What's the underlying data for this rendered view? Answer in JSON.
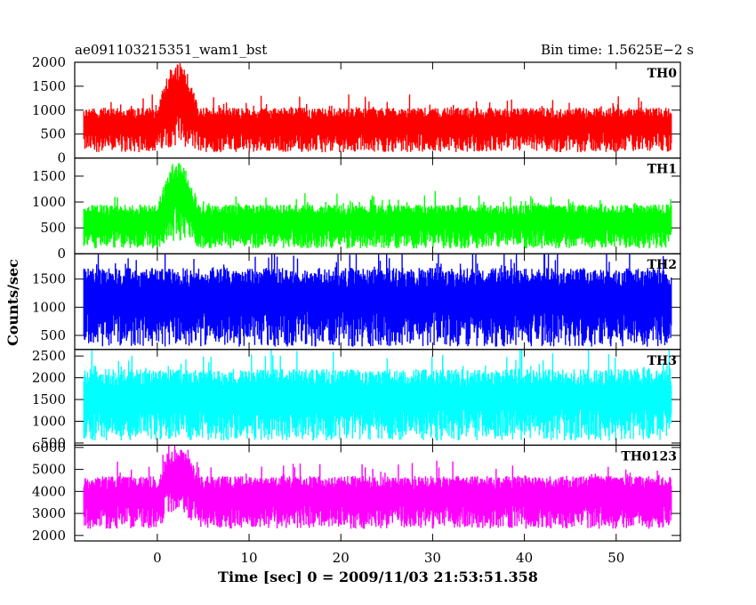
{
  "header": {
    "left_title": "ae091103215351_wam1_bst",
    "right_title": "Bin time: 1.5625E−2 s"
  },
  "chart_data": {
    "type": "line",
    "xlabel": "Time [sec] 0 = 2009/11/03 21:53:51.358",
    "ylabel": "Counts/sec",
    "xlim": [
      -9,
      57
    ],
    "x_ticks": [
      0,
      10,
      20,
      30,
      40,
      50
    ],
    "x_tick_labels": [
      "0",
      "10",
      "20",
      "30",
      "40",
      "50"
    ],
    "data_range": [
      -8,
      56
    ],
    "panels": [
      {
        "name": "TH0",
        "color": "#ff0000",
        "ylim": [
          0,
          2000
        ],
        "y_ticks": [
          0,
          500,
          1000,
          1500,
          2000
        ],
        "y_tick_labels": [
          "0",
          "500",
          "1000",
          "1500",
          "2000"
        ],
        "baseline_low": 120,
        "baseline_high": 1050,
        "burst": {
          "start": 0,
          "end": 4.5,
          "low": 250,
          "high": 2000
        }
      },
      {
        "name": "TH1",
        "color": "#00ff00",
        "ylim": [
          0,
          1850
        ],
        "y_ticks": [
          0,
          500,
          1000,
          1500
        ],
        "y_tick_labels": [
          "0",
          "500",
          "1000",
          "1500"
        ],
        "baseline_low": 100,
        "baseline_high": 950,
        "burst": {
          "start": 0,
          "end": 4.5,
          "low": 250,
          "high": 1750
        }
      },
      {
        "name": "TH2",
        "color": "#0000ff",
        "ylim": [
          250,
          1950
        ],
        "y_ticks": [
          500,
          1000,
          1500
        ],
        "y_tick_labels": [
          "500",
          "1000",
          "1500"
        ],
        "baseline_low": 300,
        "baseline_high": 1700,
        "burst": null
      },
      {
        "name": "TH3",
        "color": "#00ffff",
        "ylim": [
          450,
          2650
        ],
        "y_ticks": [
          500,
          1000,
          1500,
          2000,
          2500
        ],
        "y_tick_labels": [
          "500",
          "1000",
          "1500",
          "2000",
          "2500"
        ],
        "baseline_low": 560,
        "baseline_high": 2200,
        "burst": null
      },
      {
        "name": "TH0123",
        "color": "#ff00ff",
        "ylim": [
          1750,
          6100
        ],
        "y_ticks": [
          2000,
          3000,
          4000,
          5000,
          6000
        ],
        "y_tick_labels": [
          "2000",
          "3000",
          "4000",
          "5000",
          "6000"
        ],
        "baseline_low": 2300,
        "baseline_high": 4700,
        "burst": {
          "start": 0,
          "end": 4.5,
          "low": 3000,
          "high": 6000
        }
      }
    ]
  }
}
